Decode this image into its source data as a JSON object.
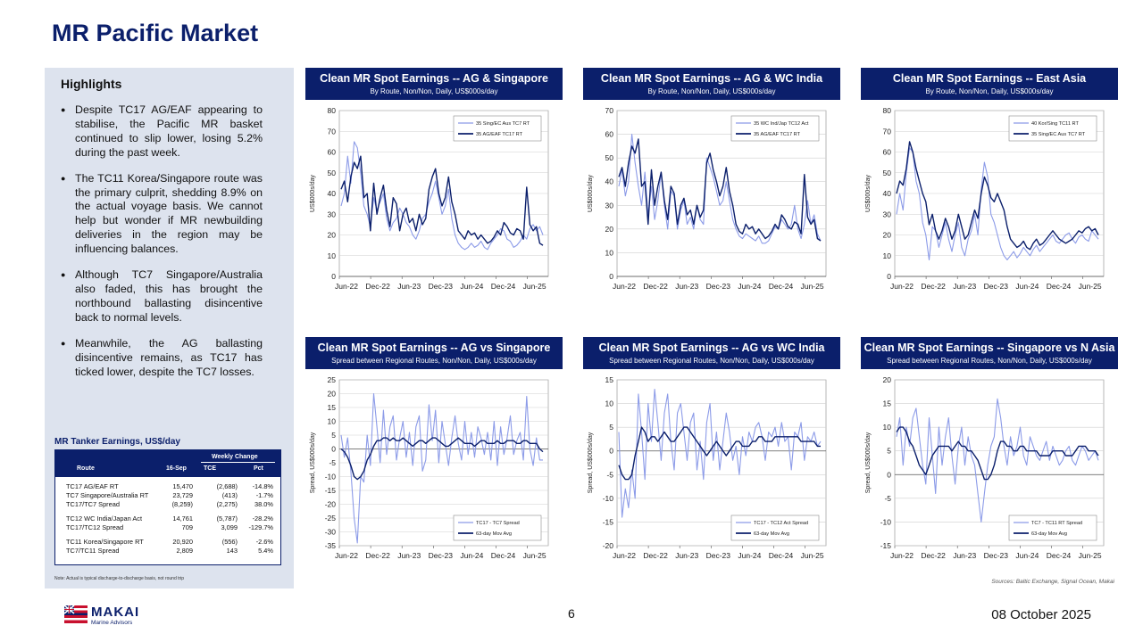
{
  "page": {
    "title": "MR Pacific Market",
    "page_number": "6",
    "date": "08 October 2025",
    "sources": "Sources: Baltic Exchange, Signal Ocean, Makai",
    "logo": {
      "brand": "MAKAI",
      "subtitle": "Marine Advisors"
    }
  },
  "highlights": {
    "title": "Highlights",
    "items": [
      "Despite TC17 AG/EAF appearing to stabilise, the Pacific MR basket continued to slip lower, losing 5.2% during the past week.",
      "The TC11 Korea/Singapore route was the primary culprit, shedding 8.9% on the actual voyage basis. We cannot help but wonder if MR newbuilding deliveries in the region may be influencing balances.",
      "Although TC7 Singapore/Australia also faded, this has brought the northbound ballasting disincentive back to normal levels.",
      "Meanwhile, the AG ballasting disincentive remains, as TC17 has ticked lower, despite the TC7 losses."
    ]
  },
  "earnings_table": {
    "title": "MR Tanker Earnings, US$/day",
    "headers": {
      "weekly_change": "Weekly Change",
      "route": "Route",
      "date": "16-Sep",
      "tce": "TCE",
      "pct": "Pct"
    },
    "groups": [
      [
        {
          "route": "TC17 AG/EAF RT",
          "value": "15,470",
          "tce": "(2,688)",
          "pct": "-14.8%"
        },
        {
          "route": "TC7 Singapore/Australia RT",
          "value": "23,729",
          "tce": "(413)",
          "pct": "-1.7%"
        },
        {
          "route": "TC17/TC7 Spread",
          "value": "(8,259)",
          "tce": "(2,275)",
          "pct": "38.0%"
        }
      ],
      [
        {
          "route": "TC12 WC India/Japan Act",
          "value": "14,761",
          "tce": "(5,787)",
          "pct": "-28.2%"
        },
        {
          "route": "TC17/TC12 Spread",
          "value": "709",
          "tce": "3,099",
          "pct": "-129.7%"
        }
      ],
      [
        {
          "route": "TC11 Korea/Singapore RT",
          "value": "20,920",
          "tce": "(556)",
          "pct": "-2.6%"
        },
        {
          "route": "TC7/TC11 Spread",
          "value": "2,809",
          "tce": "143",
          "pct": "5.4%"
        }
      ]
    ],
    "note": "Note: Actual is typical discharge-to-discharge basis, not round trip"
  },
  "colors": {
    "navy": "#0b1f6b",
    "light_series": "#8c9be8",
    "panel_bg": "#dde3ee",
    "grid": "#d0d0d0"
  },
  "chart_data": [
    {
      "id": "c1",
      "type": "line",
      "title": "Clean MR Spot Earnings -- AG & Singapore",
      "subtitle": "By Route, Non/Non, Daily, US$000s/day",
      "ylabel": "US$000s/day",
      "ylim": [
        0,
        80
      ],
      "yticks": [
        0,
        10,
        20,
        30,
        40,
        50,
        60,
        70,
        80
      ],
      "xticks": [
        "Jun-22",
        "Dec-22",
        "Jun-23",
        "Dec-23",
        "Jun-24",
        "Dec-24",
        "Jun-25"
      ],
      "x_start": "2022-06",
      "x_end": "2025-10",
      "grid": true,
      "legend": "top-right",
      "series": [
        {
          "name": "35 Sing/EC Aus TC7 RT",
          "color": "#8c9be8",
          "values": [
            34,
            40,
            58,
            45,
            65,
            62,
            50,
            34,
            30,
            24,
            38,
            32,
            36,
            40,
            28,
            22,
            26,
            28,
            33,
            30,
            26,
            24,
            20,
            18,
            22,
            28,
            30,
            36,
            40,
            46,
            38,
            30,
            34,
            42,
            28,
            20,
            16,
            14,
            13,
            14,
            16,
            14,
            15,
            17,
            14,
            13,
            16,
            18,
            20,
            23,
            22,
            18,
            17,
            14,
            15,
            17,
            20,
            18,
            23,
            25,
            22,
            24,
            20
          ]
        },
        {
          "name": "35 AG/EAF TC17 RT",
          "color": "#0b1f6b",
          "values": [
            42,
            46,
            36,
            48,
            55,
            52,
            58,
            38,
            40,
            22,
            45,
            30,
            38,
            44,
            32,
            24,
            38,
            35,
            22,
            30,
            33,
            26,
            28,
            22,
            30,
            25,
            28,
            42,
            48,
            52,
            40,
            34,
            38,
            48,
            36,
            30,
            22,
            20,
            18,
            22,
            20,
            21,
            18,
            20,
            18,
            16,
            17,
            19,
            22,
            20,
            26,
            24,
            21,
            20,
            23,
            22,
            18,
            43,
            25,
            22,
            24,
            16,
            15
          ]
        }
      ]
    },
    {
      "id": "c2",
      "type": "line",
      "title": "Clean MR Spot Earnings -- AG & WC India",
      "subtitle": "By Route, Non/Non, Daily, US$000s/day",
      "ylabel": "US$000s/day",
      "ylim": [
        0,
        70
      ],
      "yticks": [
        0,
        10,
        20,
        30,
        40,
        50,
        60,
        70
      ],
      "xticks": [
        "Jun-22",
        "Dec-22",
        "Jun-23",
        "Dec-23",
        "Jun-24",
        "Dec-24",
        "Jun-25"
      ],
      "x_start": "2022-06",
      "x_end": "2025-10",
      "grid": true,
      "legend": "top-right",
      "series": [
        {
          "name": "35 WC Ind/Jap TC12 Act",
          "color": "#8c9be8",
          "values": [
            38,
            45,
            34,
            40,
            60,
            48,
            38,
            30,
            44,
            26,
            38,
            24,
            32,
            44,
            30,
            20,
            36,
            34,
            20,
            28,
            32,
            22,
            25,
            20,
            30,
            24,
            22,
            50,
            46,
            42,
            36,
            30,
            32,
            40,
            32,
            24,
            20,
            17,
            16,
            18,
            17,
            16,
            15,
            17,
            14,
            14,
            15,
            18,
            21,
            20,
            24,
            22,
            20,
            22,
            30,
            20,
            16,
            22,
            32,
            22,
            26,
            18,
            15
          ]
        },
        {
          "name": "35 AG/EAF TC17 RT",
          "color": "#0b1f6b",
          "values": [
            42,
            46,
            38,
            48,
            55,
            52,
            58,
            38,
            40,
            22,
            45,
            30,
            38,
            44,
            32,
            24,
            38,
            35,
            22,
            30,
            33,
            26,
            28,
            22,
            30,
            25,
            28,
            48,
            52,
            45,
            40,
            34,
            38,
            46,
            36,
            30,
            22,
            19,
            18,
            22,
            20,
            21,
            18,
            20,
            18,
            16,
            17,
            19,
            22,
            20,
            26,
            24,
            21,
            20,
            23,
            22,
            18,
            43,
            25,
            22,
            24,
            16,
            15
          ]
        }
      ]
    },
    {
      "id": "c3",
      "type": "line",
      "title": "Clean MR Spot Earnings -- East Asia",
      "subtitle": "By Route, Non/Non, Daily, US$000s/day",
      "ylabel": "US$000s/day",
      "ylim": [
        0,
        80
      ],
      "yticks": [
        0,
        10,
        20,
        30,
        40,
        50,
        60,
        70,
        80
      ],
      "xticks": [
        "Jun-22",
        "Dec-22",
        "Jun-23",
        "Dec-23",
        "Jun-24",
        "Dec-24",
        "Jun-25"
      ],
      "x_start": "2022-06",
      "x_end": "2025-10",
      "grid": true,
      "legend": "top-right",
      "series": [
        {
          "name": "40 Kor/Sing TC11 RT",
          "color": "#8c9be8",
          "values": [
            30,
            40,
            32,
            50,
            62,
            60,
            46,
            40,
            26,
            20,
            8,
            24,
            22,
            14,
            20,
            26,
            18,
            12,
            20,
            26,
            14,
            10,
            18,
            22,
            30,
            20,
            42,
            55,
            48,
            30,
            26,
            20,
            14,
            10,
            8,
            10,
            12,
            9,
            11,
            14,
            12,
            10,
            13,
            15,
            12,
            14,
            16,
            18,
            20,
            17,
            16,
            18,
            20,
            21,
            18,
            16,
            19,
            20,
            18,
            17,
            22,
            20,
            18
          ]
        },
        {
          "name": "35 Sing/EC Aus TC7 RT",
          "color": "#0b1f6b",
          "values": [
            40,
            46,
            44,
            52,
            65,
            60,
            52,
            46,
            40,
            36,
            25,
            30,
            22,
            18,
            22,
            28,
            24,
            18,
            22,
            30,
            24,
            18,
            20,
            26,
            32,
            28,
            40,
            48,
            44,
            38,
            36,
            40,
            36,
            32,
            24,
            18,
            16,
            14,
            15,
            17,
            14,
            13,
            16,
            18,
            15,
            16,
            18,
            20,
            22,
            20,
            18,
            17,
            16,
            17,
            18,
            20,
            22,
            21,
            23,
            24,
            22,
            23,
            20
          ]
        }
      ]
    },
    {
      "id": "c4",
      "type": "line",
      "title": "Clean MR Spot Earnings -- AG vs Singapore",
      "subtitle": "Spread between Regional Routes, Non/Non, Daily, US$000s/day",
      "ylabel": "Spread, US$000s/day",
      "ylim": [
        -35,
        25
      ],
      "yticks": [
        -35,
        -30,
        -25,
        -20,
        -15,
        -10,
        -5,
        0,
        5,
        10,
        15,
        20,
        25
      ],
      "xticks": [
        "Jun-22",
        "Dec-22",
        "Jun-23",
        "Dec-23",
        "Jun-24",
        "Dec-24",
        "Jun-25"
      ],
      "x_start": "2022-06",
      "x_end": "2025-10",
      "grid": true,
      "legend": "bottom-right",
      "series": [
        {
          "name": "TC17 - TC7 Spread",
          "color": "#8c9be8",
          "values": [
            5,
            -3,
            4,
            -8,
            -25,
            -34,
            -10,
            -12,
            5,
            -6,
            20,
            8,
            -5,
            14,
            -2,
            8,
            12,
            -4,
            4,
            10,
            -3,
            6,
            -6,
            8,
            12,
            -8,
            -4,
            16,
            3,
            14,
            -5,
            10,
            2,
            -6,
            4,
            12,
            2,
            -4,
            10,
            -2,
            6,
            -3,
            8,
            4,
            -2,
            6,
            -4,
            10,
            -6,
            8,
            -2,
            4,
            12,
            -2,
            3,
            6,
            -4,
            19,
            0,
            -6,
            4,
            -4,
            -4
          ]
        },
        {
          "name": "63-day Mov Avg",
          "color": "#0b1f6b",
          "values": [
            0,
            -1,
            -3,
            -6,
            -10,
            -11,
            -10,
            -8,
            -4,
            -2,
            1,
            3,
            3,
            4,
            4,
            3,
            4,
            3,
            3,
            4,
            3,
            2,
            1,
            2,
            3,
            3,
            2,
            3,
            4,
            4,
            3,
            2,
            1,
            1,
            2,
            3,
            4,
            3,
            2,
            2,
            2,
            1,
            2,
            3,
            3,
            2,
            2,
            2,
            3,
            2,
            2,
            3,
            3,
            3,
            2,
            2,
            3,
            3,
            2,
            2,
            2,
            0,
            -1
          ]
        }
      ]
    },
    {
      "id": "c5",
      "type": "line",
      "title": "Clean MR Spot Earnings -- AG vs WC India",
      "subtitle": "Spread between Regional Routes, Non/Non, Daily, US$000s/day",
      "ylabel": "Spread, US$000s/day",
      "ylim": [
        -20,
        15
      ],
      "yticks": [
        -20,
        -15,
        -10,
        -5,
        0,
        5,
        10,
        15
      ],
      "xticks": [
        "Jun-22",
        "Dec-22",
        "Jun-23",
        "Dec-23",
        "Jun-24",
        "Dec-24",
        "Jun-25"
      ],
      "x_start": "2022-06",
      "x_end": "2025-10",
      "grid": true,
      "legend": "bottom-right",
      "series": [
        {
          "name": "TC17 - TC12 Act Spread",
          "color": "#8c9be8",
          "values": [
            4,
            -14,
            -8,
            -12,
            -4,
            -10,
            12,
            4,
            -6,
            10,
            2,
            13,
            6,
            -2,
            8,
            12,
            2,
            -4,
            8,
            10,
            4,
            -2,
            6,
            8,
            -4,
            2,
            -6,
            6,
            10,
            -2,
            4,
            -4,
            2,
            8,
            4,
            -2,
            1,
            -5,
            3,
            -1,
            4,
            2,
            5,
            6,
            3,
            -2,
            4,
            3,
            5,
            1,
            6,
            2,
            3,
            -4,
            4,
            3,
            6,
            -2,
            3,
            2,
            4,
            1,
            2
          ]
        },
        {
          "name": "63-day Mov Avg",
          "color": "#0b1f6b",
          "values": [
            -3,
            -5,
            -6,
            -6,
            -5,
            -1,
            2,
            5,
            4,
            2,
            3,
            3,
            2,
            3,
            4,
            3,
            2,
            2,
            3,
            4,
            5,
            5,
            4,
            3,
            2,
            1,
            0,
            -1,
            0,
            1,
            2,
            1,
            0,
            -1,
            0,
            1,
            2,
            2,
            1,
            1,
            1,
            2,
            2,
            3,
            3,
            2,
            2,
            2,
            3,
            3,
            3,
            3,
            3,
            3,
            3,
            3,
            2,
            2,
            2,
            2,
            2,
            1,
            1
          ]
        }
      ]
    },
    {
      "id": "c6",
      "type": "line",
      "title": "Clean MR Spot Earnings -- Singapore vs N Asia",
      "subtitle": "Spread between Regional Routes, Non/Non, Daily, US$000s/day",
      "ylabel": "Spread, US$000s/day",
      "ylim": [
        -15,
        20
      ],
      "yticks": [
        -15,
        -10,
        -5,
        0,
        5,
        10,
        15,
        20
      ],
      "xticks": [
        "Jun-22",
        "Dec-22",
        "Jun-23",
        "Dec-23",
        "Jun-24",
        "Dec-24",
        "Jun-25"
      ],
      "x_start": "2022-06",
      "x_end": "2025-10",
      "grid": true,
      "legend": "bottom-right",
      "series": [
        {
          "name": "TC7 - TC11 RT Spread",
          "color": "#8c9be8",
          "values": [
            8,
            12,
            2,
            10,
            6,
            12,
            14,
            8,
            2,
            -2,
            12,
            4,
            -4,
            10,
            2,
            8,
            12,
            4,
            -2,
            6,
            10,
            2,
            8,
            4,
            2,
            -4,
            -10,
            -4,
            2,
            6,
            8,
            16,
            12,
            6,
            2,
            8,
            4,
            6,
            10,
            4,
            2,
            8,
            6,
            4,
            3,
            5,
            7,
            3,
            6,
            4,
            2,
            3,
            5,
            6,
            3,
            2,
            4,
            6,
            5,
            3,
            4,
            5,
            3
          ]
        },
        {
          "name": "63-day Mov Avg",
          "color": "#0b1f6b",
          "values": [
            9,
            10,
            10,
            9,
            7,
            6,
            4,
            2,
            1,
            0,
            2,
            4,
            5,
            6,
            6,
            6,
            6,
            5,
            6,
            7,
            6,
            6,
            5,
            5,
            4,
            3,
            1,
            -1,
            -1,
            0,
            2,
            5,
            7,
            7,
            6,
            6,
            5,
            5,
            6,
            6,
            5,
            5,
            5,
            5,
            4,
            4,
            4,
            4,
            5,
            5,
            5,
            5,
            4,
            4,
            4,
            5,
            6,
            6,
            6,
            5,
            5,
            5,
            4
          ]
        }
      ]
    }
  ]
}
